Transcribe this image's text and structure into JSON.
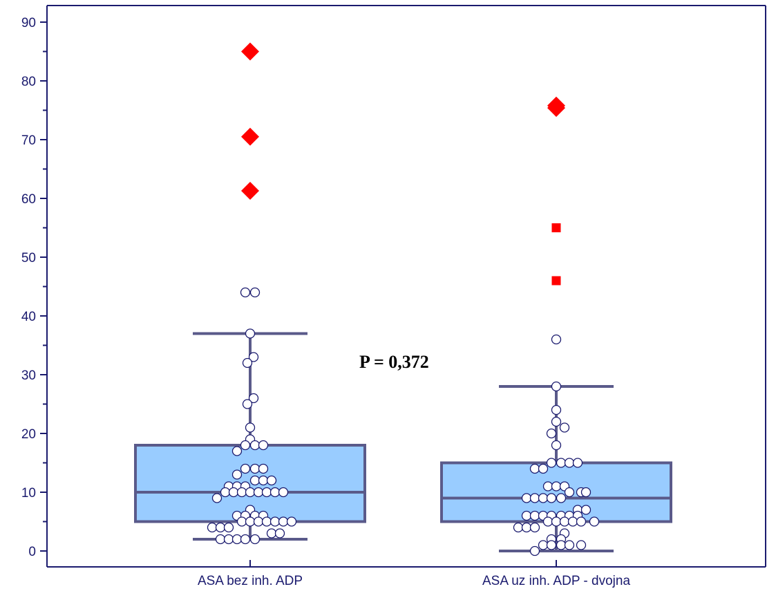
{
  "chart_data": {
    "type": "box",
    "title": "",
    "xlabel": "",
    "ylabel": "",
    "ylim": [
      -2,
      93
    ],
    "yticks_major": [
      0,
      10,
      20,
      30,
      40,
      50,
      60,
      70,
      80,
      90
    ],
    "yticks_minor_step": 5,
    "grid": false,
    "annotation": "P = 0,372",
    "colors": {
      "box_fill": "#99ccff",
      "box_stroke": "#5a5a8a",
      "axis": "#1a1a6e",
      "point_stroke": "#1a1a6e",
      "outlier": "#ff0000"
    },
    "categories": [
      "ASA bez inh. ADP",
      "ASA uz inh. ADP - dvojna"
    ],
    "boxes": [
      {
        "name": "ASA bez inh. ADP",
        "q1": 5,
        "median": 10,
        "q3": 18,
        "whisker_low": 2,
        "whisker_high": 37,
        "outliers_far": [
          85,
          70.5,
          61.3
        ],
        "outliers_near": [],
        "points": [
          {
            "y": 44,
            "o": -0.07
          },
          {
            "y": 44,
            "o": 0.07
          },
          {
            "y": 37,
            "o": 0
          },
          {
            "y": 33,
            "o": 0.05
          },
          {
            "y": 32,
            "o": -0.04
          },
          {
            "y": 26,
            "o": 0.05
          },
          {
            "y": 25,
            "o": -0.04
          },
          {
            "y": 21,
            "o": 0
          },
          {
            "y": 19,
            "o": 0
          },
          {
            "y": 18,
            "o": -0.07
          },
          {
            "y": 18,
            "o": 0.07
          },
          {
            "y": 18,
            "o": 0.19
          },
          {
            "y": 17,
            "o": -0.19
          },
          {
            "y": 14,
            "o": -0.07
          },
          {
            "y": 14,
            "o": 0.07
          },
          {
            "y": 14,
            "o": 0.19
          },
          {
            "y": 13,
            "o": -0.19
          },
          {
            "y": 12,
            "o": 0.07
          },
          {
            "y": 12,
            "o": 0.19
          },
          {
            "y": 12,
            "o": 0.31
          },
          {
            "y": 11,
            "o": -0.31
          },
          {
            "y": 11,
            "o": -0.19
          },
          {
            "y": 11,
            "o": -0.07
          },
          {
            "y": 10,
            "o": -0.36
          },
          {
            "y": 10,
            "o": -0.24
          },
          {
            "y": 10,
            "o": -0.12
          },
          {
            "y": 10,
            "o": 0
          },
          {
            "y": 10,
            "o": 0.12
          },
          {
            "y": 10,
            "o": 0.24
          },
          {
            "y": 10,
            "o": 0.36
          },
          {
            "y": 10,
            "o": 0.48
          },
          {
            "y": 9,
            "o": -0.48
          },
          {
            "y": 7,
            "o": 0
          },
          {
            "y": 6,
            "o": -0.19
          },
          {
            "y": 6,
            "o": -0.07
          },
          {
            "y": 6,
            "o": 0.07
          },
          {
            "y": 6,
            "o": 0.19
          },
          {
            "y": 5,
            "o": -0.12
          },
          {
            "y": 5,
            "o": 0
          },
          {
            "y": 5,
            "o": 0.12
          },
          {
            "y": 5,
            "o": 0.24
          },
          {
            "y": 5,
            "o": 0.36
          },
          {
            "y": 5,
            "o": 0.48
          },
          {
            "y": 5,
            "o": 0.6
          },
          {
            "y": 4,
            "o": -0.55
          },
          {
            "y": 4,
            "o": -0.43
          },
          {
            "y": 4,
            "o": -0.31
          },
          {
            "y": 3,
            "o": 0.31
          },
          {
            "y": 3,
            "o": 0.43
          },
          {
            "y": 2,
            "o": -0.43
          },
          {
            "y": 2,
            "o": -0.31
          },
          {
            "y": 2,
            "o": -0.19
          },
          {
            "y": 2,
            "o": -0.07
          },
          {
            "y": 2,
            "o": 0.07
          }
        ]
      },
      {
        "name": "ASA uz inh. ADP - dvojna",
        "q1": 5,
        "median": 9,
        "q3": 15,
        "whisker_low": 0,
        "whisker_high": 28,
        "outliers_far": [
          75.8,
          75.4
        ],
        "outliers_near": [
          55,
          46
        ],
        "points": [
          {
            "y": 36,
            "o": 0
          },
          {
            "y": 28,
            "o": 0
          },
          {
            "y": 24,
            "o": 0
          },
          {
            "y": 22,
            "o": 0
          },
          {
            "y": 21,
            "o": 0.12
          },
          {
            "y": 20,
            "o": -0.07
          },
          {
            "y": 18,
            "o": 0
          },
          {
            "y": 15,
            "o": -0.07
          },
          {
            "y": 15,
            "o": 0.07
          },
          {
            "y": 15,
            "o": 0.19
          },
          {
            "y": 15,
            "o": 0.31
          },
          {
            "y": 14,
            "o": -0.31
          },
          {
            "y": 14,
            "o": -0.19
          },
          {
            "y": 11,
            "o": -0.12
          },
          {
            "y": 11,
            "o": 0
          },
          {
            "y": 11,
            "o": 0.12
          },
          {
            "y": 10,
            "o": 0.19
          },
          {
            "y": 10,
            "o": 0.36
          },
          {
            "y": 10,
            "o": 0.43
          },
          {
            "y": 9,
            "o": -0.43
          },
          {
            "y": 9,
            "o": -0.31
          },
          {
            "y": 9,
            "o": -0.19
          },
          {
            "y": 9,
            "o": -0.07
          },
          {
            "y": 9,
            "o": 0.07
          },
          {
            "y": 7,
            "o": 0.31
          },
          {
            "y": 7,
            "o": 0.43
          },
          {
            "y": 6,
            "o": -0.43
          },
          {
            "y": 6,
            "o": -0.31
          },
          {
            "y": 6,
            "o": -0.19
          },
          {
            "y": 6,
            "o": -0.07
          },
          {
            "y": 6,
            "o": 0.07
          },
          {
            "y": 6,
            "o": 0.19
          },
          {
            "y": 6,
            "o": 0.31
          },
          {
            "y": 5,
            "o": -0.12
          },
          {
            "y": 5,
            "o": 0
          },
          {
            "y": 5,
            "o": 0.12
          },
          {
            "y": 5,
            "o": 0.24
          },
          {
            "y": 5,
            "o": 0.36
          },
          {
            "y": 5,
            "o": 0.55
          },
          {
            "y": 4,
            "o": -0.55
          },
          {
            "y": 4,
            "o": -0.43
          },
          {
            "y": 4,
            "o": -0.31
          },
          {
            "y": 3,
            "o": 0.12
          },
          {
            "y": 2,
            "o": -0.07
          },
          {
            "y": 2,
            "o": 0.07
          },
          {
            "y": 1,
            "o": -0.19
          },
          {
            "y": 1,
            "o": -0.07
          },
          {
            "y": 1,
            "o": 0.07
          },
          {
            "y": 1,
            "o": 0.19
          },
          {
            "y": 1,
            "o": 0.36
          },
          {
            "y": 0,
            "o": -0.31
          }
        ]
      }
    ]
  }
}
